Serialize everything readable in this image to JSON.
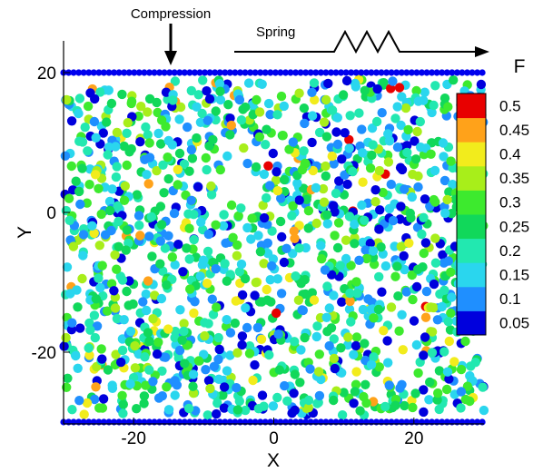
{
  "chart_data": {
    "type": "scatter",
    "title": "",
    "xlabel": "X",
    "ylabel": "Y",
    "xlim": [
      -30,
      30
    ],
    "ylim": [
      -30,
      25
    ],
    "x_ticks": [
      -20,
      0,
      20
    ],
    "x_tick_labels": [
      "-20",
      "0",
      "20"
    ],
    "y_ticks": [
      -20,
      0,
      20
    ],
    "y_tick_labels": [
      "-20",
      "0",
      "20"
    ],
    "grid": false,
    "colorbar": {
      "title": "F",
      "position": "right",
      "levels": [
        0.05,
        0.1,
        0.15,
        0.2,
        0.25,
        0.3,
        0.35,
        0.4,
        0.45,
        0.5
      ],
      "labels": [
        "0.05",
        "0.1",
        "0.15",
        "0.2",
        "0.25",
        "0.3",
        "0.35",
        "0.4",
        "0.45",
        "0.5"
      ],
      "colors": [
        "#0000dd",
        "#1f8fff",
        "#2ad6ee",
        "#22e8b0",
        "#11d85a",
        "#3dea2e",
        "#a8ee1a",
        "#f2ec1c",
        "#ffa21a",
        "#e80000"
      ]
    },
    "boundaries": {
      "top_wall_y": 20,
      "bottom_wall_y": -30,
      "wall_x_range": [
        -30,
        30
      ],
      "wall_color": "#0000ee"
    },
    "annotations": {
      "compression_label": "Compression",
      "compression_x": -15,
      "spring_label": "Spring"
    },
    "particles": {
      "description_of_field": "Dense random packing of disks between two walls, colored by force F",
      "approx_count": 1500,
      "x_range": [
        -30,
        30
      ],
      "y_range": [
        -29,
        19
      ],
      "radius": 0.9,
      "value_range": [
        0.05,
        0.5
      ],
      "weights": [
        0.12,
        0.14,
        0.18,
        0.16,
        0.15,
        0.12,
        0.07,
        0.04,
        0.015,
        0.005
      ]
    }
  }
}
